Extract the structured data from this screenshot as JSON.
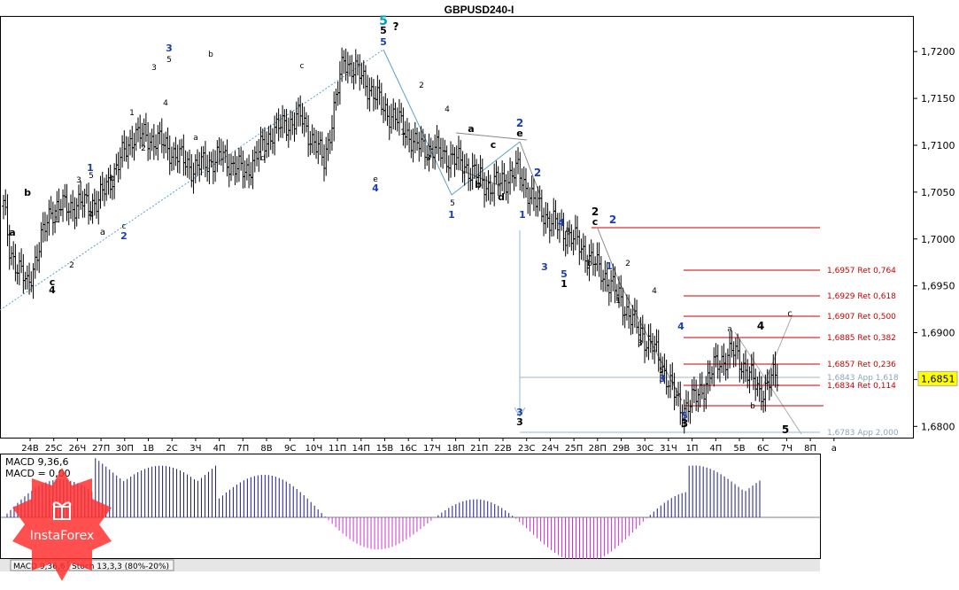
{
  "title": "GBPUSD240-I",
  "price_axis": {
    "ticks": [
      "1,7200",
      "1,7150",
      "1,7100",
      "1,7050",
      "1,7000",
      "1,6950",
      "1,6900",
      "1,6850",
      "1,6800"
    ],
    "current": "1,6851",
    "current_color": "#ffff00"
  },
  "chart_data": {
    "type": "bar",
    "symbol": "GBPUSD240-I",
    "ylim": [
      1.6788,
      1.7238
    ],
    "grid": false,
    "xticks": [
      "24В",
      "25С",
      "26Ч",
      "27П",
      "30П",
      "1В",
      "2С",
      "3Ч",
      "4П",
      "7П",
      "8В",
      "9С",
      "10Ч",
      "11П",
      "14П",
      "15В",
      "16С",
      "17Ч",
      "18П",
      "21П",
      "22В",
      "23С",
      "24Ч",
      "25П",
      "28П",
      "29В",
      "30С",
      "31Ч",
      "1П",
      "4П",
      "5В",
      "6С",
      "7Ч",
      "8П",
      "а"
    ],
    "wave_path": [
      [
        0,
        1.7035
      ],
      [
        3,
        1.699
      ],
      [
        6,
        1.6975
      ],
      [
        12,
        1.695
      ],
      [
        24,
        1.7032
      ],
      [
        48,
        1.704
      ],
      [
        66,
        1.7112
      ],
      [
        78,
        1.7105
      ],
      [
        96,
        1.7075
      ],
      [
        110,
        1.7088
      ],
      [
        122,
        1.707
      ],
      [
        136,
        1.7115
      ],
      [
        150,
        1.713
      ],
      [
        162,
        1.7083
      ],
      [
        172,
        1.7192
      ],
      [
        182,
        1.717
      ],
      [
        192,
        1.714
      ],
      [
        202,
        1.712
      ],
      [
        208,
        1.71
      ],
      [
        218,
        1.7095
      ],
      [
        232,
        1.708
      ],
      [
        246,
        1.7055
      ],
      [
        260,
        1.7072
      ],
      [
        268,
        1.704
      ],
      [
        276,
        1.702
      ],
      [
        288,
        1.7
      ],
      [
        296,
        1.698
      ],
      [
        304,
        1.696
      ],
      [
        312,
        1.6935
      ],
      [
        320,
        1.6905
      ],
      [
        328,
        1.6885
      ],
      [
        336,
        1.685
      ],
      [
        342,
        1.6818
      ],
      [
        350,
        1.683
      ],
      [
        360,
        1.6865
      ],
      [
        368,
        1.688
      ],
      [
        376,
        1.686
      ],
      [
        382,
        1.6835
      ],
      [
        388,
        1.6851
      ]
    ],
    "indicators": [
      "MACD 9,36,6",
      "MACD = 0,00"
    ]
  },
  "fib_levels": [
    {
      "label": "1,6957 Ret 0,764"
    },
    {
      "label": "1,6929 Ret 0,618"
    },
    {
      "label": "1,6907 Ret 0,500"
    },
    {
      "label": "1,6885 Ret 0,382"
    },
    {
      "label": "1,6857 Ret 0,236"
    },
    {
      "label": "1,6843 App 1,618"
    },
    {
      "label": "1,6834 Ret 0,114"
    },
    {
      "label": "1,6783 App 2,000"
    }
  ],
  "wave_labels": [
    {
      "t": "5",
      "c": "#0099cc"
    },
    {
      "t": "5",
      "c": "#000"
    },
    {
      "t": "?",
      "c": "#000"
    },
    {
      "t": "b",
      "c": "#000"
    },
    {
      "t": "a",
      "c": "#000"
    },
    {
      "t": "c",
      "c": "#000"
    },
    {
      "t": "4",
      "c": "#000"
    },
    {
      "t": "1",
      "c": "#000"
    },
    {
      "t": "2",
      "c": "#000"
    },
    {
      "t": "a",
      "c": "#000"
    },
    {
      "t": "1",
      "c": "#1a3fb0"
    },
    {
      "t": "3",
      "c": "#000"
    },
    {
      "t": "5",
      "c": "#000"
    },
    {
      "t": "4",
      "c": "#000"
    },
    {
      "t": "b",
      "c": "#000"
    },
    {
      "t": "c",
      "c": "#000"
    },
    {
      "t": "2",
      "c": "#1a3fb0"
    },
    {
      "t": "1",
      "c": "#000"
    },
    {
      "t": "2",
      "c": "#000"
    },
    {
      "t": "3",
      "c": "#1a3fb0"
    },
    {
      "t": "3",
      "c": "#000"
    },
    {
      "t": "5",
      "c": "#000"
    },
    {
      "t": "4",
      "c": "#000"
    },
    {
      "t": "a",
      "c": "#000"
    },
    {
      "t": "b",
      "c": "#000"
    },
    {
      "t": "d",
      "c": "#000"
    },
    {
      "t": "c",
      "c": "#000"
    },
    {
      "t": "5",
      "c": "#1a3fb0"
    },
    {
      "t": "e",
      "c": "#000"
    },
    {
      "t": "4",
      "c": "#1a3fb0"
    },
    {
      "t": "2",
      "c": "#000"
    },
    {
      "t": "1",
      "c": "#000"
    },
    {
      "t": "3",
      "c": "#000"
    },
    {
      "t": "4",
      "c": "#000"
    },
    {
      "t": "5",
      "c": "#000"
    },
    {
      "t": "1",
      "c": "#1a3fb0"
    },
    {
      "t": "a",
      "c": "#000"
    },
    {
      "t": "c",
      "c": "#000"
    },
    {
      "t": "b",
      "c": "#000"
    },
    {
      "t": "d",
      "c": "#000"
    },
    {
      "t": "2",
      "c": "#1a3fb0"
    },
    {
      "t": "e",
      "c": "#000"
    },
    {
      "t": "2",
      "c": "#1a3fb0"
    },
    {
      "t": "1",
      "c": "#1a3fb0"
    },
    {
      "t": "4",
      "c": "#1a3fb0"
    },
    {
      "t": "3",
      "c": "#1a3fb0"
    },
    {
      "t": "5",
      "c": "#1a3fb0"
    },
    {
      "t": "1",
      "c": "#000"
    },
    {
      "t": "a",
      "c": "#000"
    },
    {
      "t": "b",
      "c": "#000"
    },
    {
      "t": "2",
      "c": "#000"
    },
    {
      "t": "c",
      "c": "#000"
    },
    {
      "t": "2",
      "c": "#1a3fb0"
    },
    {
      "t": "1",
      "c": "#1a3fb0"
    },
    {
      "t": "2",
      "c": "#000"
    },
    {
      "t": "1",
      "c": "#000"
    },
    {
      "t": "3",
      "c": "#000"
    },
    {
      "t": "4",
      "c": "#000"
    },
    {
      "t": "5",
      "c": "#000"
    },
    {
      "t": "3",
      "c": "#1a3fb0"
    },
    {
      "t": "4",
      "c": "#1a3fb0"
    },
    {
      "t": "5",
      "c": "#1a3fb0"
    },
    {
      "t": "3",
      "c": "#000"
    },
    {
      "t": "a",
      "c": "#000"
    },
    {
      "t": "b",
      "c": "#000"
    },
    {
      "t": "4",
      "c": "#000"
    },
    {
      "t": "c",
      "c": "#000"
    },
    {
      "t": "5",
      "c": "#000"
    },
    {
      "t": "3",
      "c": "#1a3fb0"
    },
    {
      "t": "3",
      "c": "#000"
    }
  ],
  "bottom_tabs": [
    "MACD 9,36,6",
    "Stoch 13,3,3 (80%-20%)"
  ],
  "watermark": "InstaForex"
}
